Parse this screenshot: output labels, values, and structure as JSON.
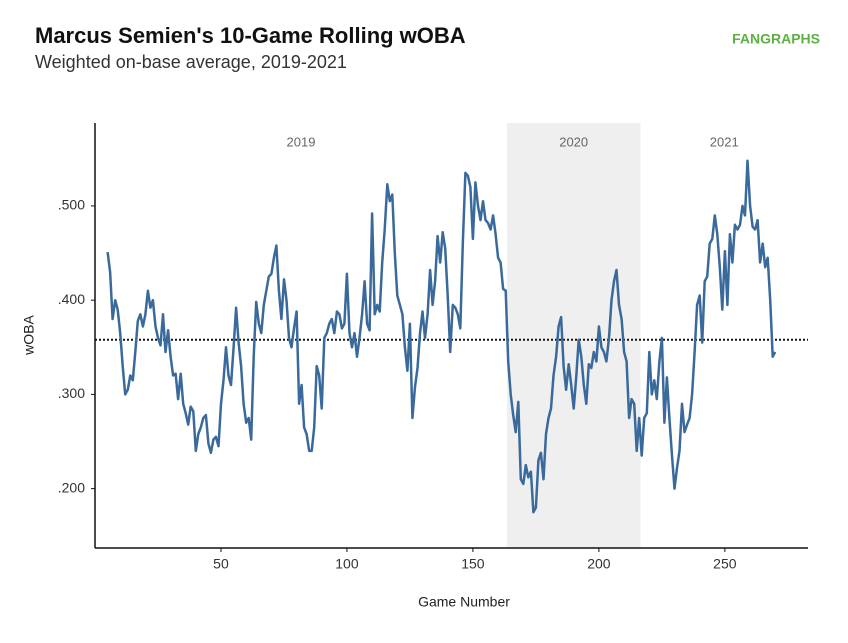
{
  "chart_data": {
    "type": "line",
    "title": "Marcus Semien's 10-Game Rolling wOBA",
    "subtitle": "Weighted on-base average, 2019-2021",
    "logo": "FANGRAPHS",
    "xlabel": "Game Number",
    "ylabel": "wOBA",
    "xlim": [
      0,
      283
    ],
    "ylim": [
      0.137,
      0.588
    ],
    "xticks": [
      50,
      100,
      150,
      200,
      250
    ],
    "yticks": [
      {
        "value": 0.2,
        "label": ".200"
      },
      {
        "value": 0.3,
        "label": ".300"
      },
      {
        "value": 0.4,
        "label": ".400"
      },
      {
        "value": 0.5,
        "label": ".500"
      }
    ],
    "reference_line": 0.358,
    "regions": [
      {
        "label": "2019",
        "start": 0,
        "end": 163.5,
        "shaded": false
      },
      {
        "label": "2020",
        "start": 163.5,
        "end": 216.5,
        "shaded": true
      },
      {
        "label": "2021",
        "start": 216.5,
        "end": 283,
        "shaded": false
      }
    ],
    "x": [
      5,
      6,
      7,
      8,
      9,
      10,
      11,
      12,
      13,
      14,
      15,
      16,
      17,
      18,
      19,
      20,
      21,
      22,
      23,
      24,
      25,
      26,
      27,
      28,
      29,
      30,
      31,
      32,
      33,
      34,
      35,
      36,
      37,
      38,
      39,
      40,
      41,
      42,
      43,
      44,
      45,
      46,
      47,
      48,
      49,
      50,
      51,
      52,
      53,
      54,
      55,
      56,
      57,
      58,
      59,
      60,
      61,
      62,
      63,
      64,
      65,
      66,
      67,
      68,
      69,
      70,
      71,
      72,
      73,
      74,
      75,
      76,
      77,
      78,
      79,
      80,
      81,
      82,
      83,
      84,
      85,
      86,
      87,
      88,
      89,
      90,
      91,
      92,
      93,
      94,
      95,
      96,
      97,
      98,
      99,
      100,
      101,
      102,
      103,
      104,
      105,
      106,
      107,
      108,
      109,
      110,
      111,
      112,
      113,
      114,
      115,
      116,
      117,
      118,
      119,
      120,
      121,
      122,
      123,
      124,
      125,
      126,
      127,
      128,
      129,
      130,
      131,
      132,
      133,
      134,
      135,
      136,
      137,
      138,
      139,
      140,
      141,
      142,
      143,
      144,
      145,
      146,
      147,
      148,
      149,
      150,
      151,
      152,
      153,
      154,
      155,
      156,
      157,
      158,
      159,
      160,
      161,
      162,
      163,
      164,
      165,
      166,
      167,
      168,
      169,
      170,
      171,
      172,
      173,
      174,
      175,
      176,
      177,
      178,
      179,
      180,
      181,
      182,
      183,
      184,
      185,
      186,
      187,
      188,
      189,
      190,
      191,
      192,
      193,
      194,
      195,
      196,
      197,
      198,
      199,
      200,
      201,
      202,
      203,
      204,
      205,
      206,
      207,
      208,
      209,
      210,
      211,
      212,
      213,
      214,
      215,
      216,
      217,
      218,
      219,
      220,
      221,
      222,
      223,
      224,
      225,
      226,
      227,
      228,
      229,
      230,
      231,
      232,
      233,
      234,
      235,
      236,
      237,
      238,
      239,
      240,
      241,
      242,
      243,
      244,
      245,
      246,
      247,
      248,
      249,
      250,
      251,
      252,
      253,
      254,
      255,
      256,
      257,
      258,
      259,
      260,
      261,
      262,
      263,
      264,
      265,
      266,
      267,
      268,
      269,
      270
    ],
    "series": [
      {
        "name": "wOBA",
        "color": "#3a6a9b",
        "values": [
          0.451,
          0.43,
          0.38,
          0.4,
          0.39,
          0.365,
          0.33,
          0.3,
          0.305,
          0.32,
          0.315,
          0.345,
          0.378,
          0.385,
          0.372,
          0.385,
          0.41,
          0.392,
          0.4,
          0.372,
          0.36,
          0.352,
          0.385,
          0.345,
          0.368,
          0.34,
          0.32,
          0.322,
          0.295,
          0.322,
          0.29,
          0.28,
          0.268,
          0.287,
          0.282,
          0.24,
          0.258,
          0.265,
          0.275,
          0.278,
          0.248,
          0.238,
          0.252,
          0.255,
          0.245,
          0.29,
          0.315,
          0.35,
          0.32,
          0.31,
          0.35,
          0.392,
          0.355,
          0.33,
          0.29,
          0.27,
          0.275,
          0.252,
          0.34,
          0.398,
          0.375,
          0.365,
          0.395,
          0.41,
          0.425,
          0.428,
          0.445,
          0.458,
          0.41,
          0.38,
          0.422,
          0.4,
          0.36,
          0.35,
          0.37,
          0.388,
          0.29,
          0.31,
          0.265,
          0.258,
          0.24,
          0.24,
          0.265,
          0.33,
          0.32,
          0.285,
          0.36,
          0.365,
          0.375,
          0.38,
          0.365,
          0.388,
          0.385,
          0.37,
          0.375,
          0.428,
          0.365,
          0.35,
          0.365,
          0.34,
          0.36,
          0.385,
          0.42,
          0.375,
          0.368,
          0.492,
          0.385,
          0.395,
          0.388,
          0.44,
          0.475,
          0.523,
          0.505,
          0.512,
          0.45,
          0.405,
          0.395,
          0.385,
          0.35,
          0.325,
          0.375,
          0.275,
          0.308,
          0.328,
          0.365,
          0.388,
          0.36,
          0.385,
          0.432,
          0.395,
          0.42,
          0.468,
          0.44,
          0.472,
          0.455,
          0.405,
          0.345,
          0.395,
          0.392,
          0.385,
          0.37,
          0.46,
          0.535,
          0.532,
          0.52,
          0.465,
          0.525,
          0.5,
          0.485,
          0.505,
          0.485,
          0.482,
          0.475,
          0.49,
          0.47,
          0.445,
          0.44,
          0.412,
          0.41,
          0.335,
          0.3,
          0.278,
          0.26,
          0.292,
          0.21,
          0.205,
          0.225,
          0.212,
          0.218,
          0.175,
          0.18,
          0.23,
          0.238,
          0.21,
          0.258,
          0.275,
          0.285,
          0.32,
          0.34,
          0.372,
          0.382,
          0.33,
          0.305,
          0.332,
          0.31,
          0.285,
          0.318,
          0.358,
          0.34,
          0.31,
          0.29,
          0.332,
          0.328,
          0.345,
          0.335,
          0.372,
          0.35,
          0.345,
          0.335,
          0.36,
          0.4,
          0.42,
          0.432,
          0.395,
          0.38,
          0.345,
          0.335,
          0.275,
          0.295,
          0.29,
          0.24,
          0.275,
          0.235,
          0.275,
          0.28,
          0.345,
          0.3,
          0.315,
          0.295,
          0.335,
          0.36,
          0.27,
          0.318,
          0.275,
          0.235,
          0.2,
          0.222,
          0.24,
          0.29,
          0.26,
          0.268,
          0.275,
          0.3,
          0.345,
          0.395,
          0.405,
          0.355,
          0.42,
          0.425,
          0.46,
          0.465,
          0.49,
          0.47,
          0.435,
          0.39,
          0.452,
          0.395,
          0.47,
          0.44,
          0.48,
          0.475,
          0.48,
          0.5,
          0.49,
          0.548,
          0.5,
          0.478,
          0.475,
          0.485,
          0.44,
          0.46,
          0.435,
          0.445,
          0.4,
          0.34,
          0.345
        ]
      }
    ]
  }
}
